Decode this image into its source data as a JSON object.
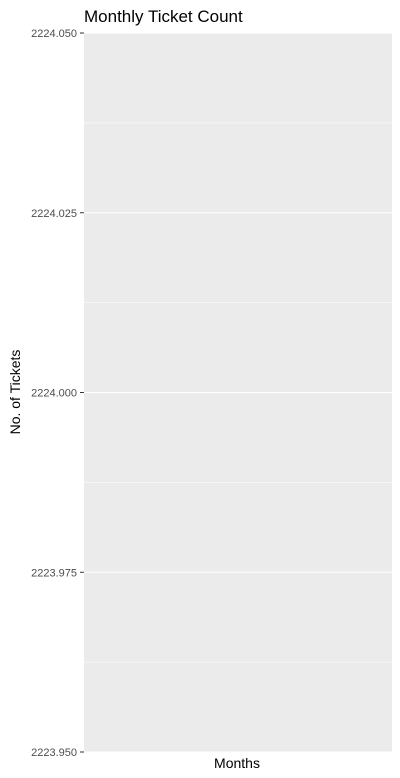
{
  "chart_data": {
    "type": "bar",
    "title": "Monthly Ticket Count",
    "xlabel": "Months",
    "ylabel": "No. of Tickets",
    "categories": [],
    "values": [],
    "ylim": [
      2223.95,
      2224.05
    ],
    "y_ticks": [
      "2223.950",
      "2223.975",
      "2224.000",
      "2224.025",
      "2224.050"
    ],
    "y_tick_values": [
      2223.95,
      2223.975,
      2224.0,
      2224.025,
      2224.05
    ],
    "y_minor_values": [
      2223.9625,
      2223.9875,
      2224.0125,
      2224.0375
    ],
    "grid": true,
    "legend": "none",
    "colors": {
      "panel_background": "#ebebeb",
      "gridline": "#ffffff",
      "tick_text": "#4d4d4d",
      "axis_tick": "#333333"
    }
  }
}
